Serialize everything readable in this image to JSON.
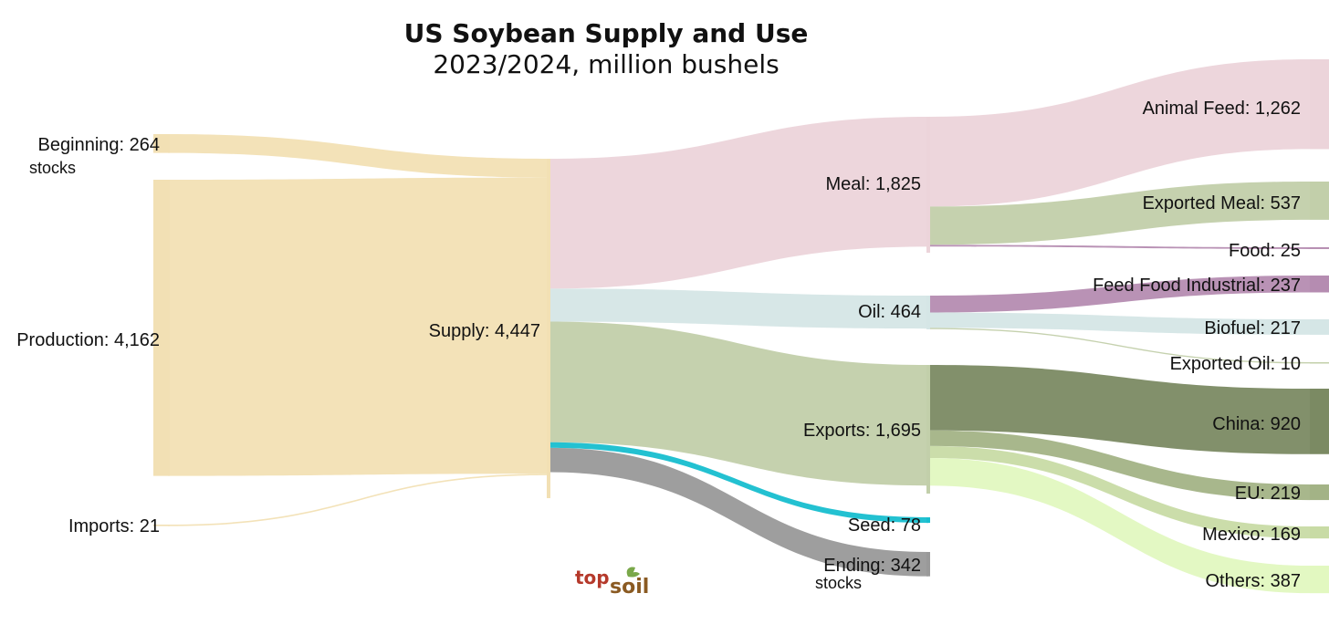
{
  "chart_data": {
    "type": "sankey",
    "title": "US Soybean Supply and Use",
    "subtitle": "2023/2024, million bushels",
    "unit": "million bushels",
    "nodes": [
      {
        "id": "beginning",
        "label": "Beginning: 264",
        "sublabel": "stocks",
        "value": 264,
        "color": "#f2e0b4"
      },
      {
        "id": "production",
        "label": "Production: 4,162",
        "value": 4162,
        "color": "#f2e0b4"
      },
      {
        "id": "imports",
        "label": "Imports: 21",
        "value": 21,
        "color": "#f2e0b4"
      },
      {
        "id": "supply",
        "label": "Supply: 4,447",
        "value": 4447,
        "color": "#f2e0b4"
      },
      {
        "id": "meal",
        "label": "Meal: 1,825",
        "value": 1825,
        "color": "#ecd4da"
      },
      {
        "id": "oil",
        "label": "Oil: 464",
        "value": 464,
        "color": "#d5e6e6"
      },
      {
        "id": "exports",
        "label": "Exports: 1,695",
        "value": 1695,
        "color": "#c2cfaa"
      },
      {
        "id": "seed",
        "label": "Seed: 78",
        "value": 78,
        "color": "#17becf"
      },
      {
        "id": "ending",
        "label": "Ending: 342",
        "sublabel": "stocks",
        "value": 342,
        "color": "#999999"
      },
      {
        "id": "animal_feed",
        "label": "Animal Feed: 1,262",
        "value": 1262,
        "color": "#ecd4da"
      },
      {
        "id": "exported_meal",
        "label": "Exported Meal: 537",
        "value": 537,
        "color": "#c2cfaa"
      },
      {
        "id": "food",
        "label": "Food: 25",
        "value": 25,
        "color": "#b58cb1"
      },
      {
        "id": "ffi",
        "label": "Feed Food Industrial: 237",
        "value": 237,
        "color": "#b58cb1"
      },
      {
        "id": "biofuel",
        "label": "Biofuel: 217",
        "value": 217,
        "color": "#d5e6e6"
      },
      {
        "id": "exported_oil",
        "label": "Exported Oil: 10",
        "value": 10,
        "color": "#c2cfaa"
      },
      {
        "id": "china",
        "label": "China: 920",
        "value": 920,
        "color": "#7b8a63"
      },
      {
        "id": "eu",
        "label": "EU: 219",
        "value": 219,
        "color": "#a3b386"
      },
      {
        "id": "mexico",
        "label": "Mexico: 169",
        "value": 169,
        "color": "#c8dba5"
      },
      {
        "id": "others",
        "label": "Others: 387",
        "value": 387,
        "color": "#e2f8c0"
      }
    ],
    "links": [
      {
        "source": "beginning",
        "target": "supply",
        "value": 264,
        "color": "#f2e0b4"
      },
      {
        "source": "production",
        "target": "supply",
        "value": 4162,
        "color": "#f2e0b4"
      },
      {
        "source": "imports",
        "target": "supply",
        "value": 21,
        "color": "#f2e0b4"
      },
      {
        "source": "supply",
        "target": "meal",
        "value": 1825,
        "color": "#ecd4da"
      },
      {
        "source": "supply",
        "target": "oil",
        "value": 464,
        "color": "#d5e6e6"
      },
      {
        "source": "supply",
        "target": "exports",
        "value": 1695,
        "color": "#c2cfaa"
      },
      {
        "source": "supply",
        "target": "seed",
        "value": 78,
        "color": "#17becf"
      },
      {
        "source": "supply",
        "target": "ending",
        "value": 342,
        "color": "#999999"
      },
      {
        "source": "meal",
        "target": "animal_feed",
        "value": 1262,
        "color": "#ecd4da"
      },
      {
        "source": "meal",
        "target": "exported_meal",
        "value": 537,
        "color": "#c2cfaa"
      },
      {
        "source": "meal",
        "target": "food",
        "value": 25,
        "color": "#b58cb1"
      },
      {
        "source": "oil",
        "target": "ffi",
        "value": 237,
        "color": "#b58cb1"
      },
      {
        "source": "oil",
        "target": "biofuel",
        "value": 217,
        "color": "#d5e6e6"
      },
      {
        "source": "oil",
        "target": "exported_oil",
        "value": 10,
        "color": "#c2cfaa"
      },
      {
        "source": "exports",
        "target": "china",
        "value": 920,
        "color": "#7b8a63"
      },
      {
        "source": "exports",
        "target": "eu",
        "value": 219,
        "color": "#a3b386"
      },
      {
        "source": "exports",
        "target": "mexico",
        "value": 169,
        "color": "#c8dba5"
      },
      {
        "source": "exports",
        "target": "others",
        "value": 387,
        "color": "#e2f8c0"
      }
    ]
  },
  "logo": {
    "part1": "top",
    "part2": "soil"
  }
}
